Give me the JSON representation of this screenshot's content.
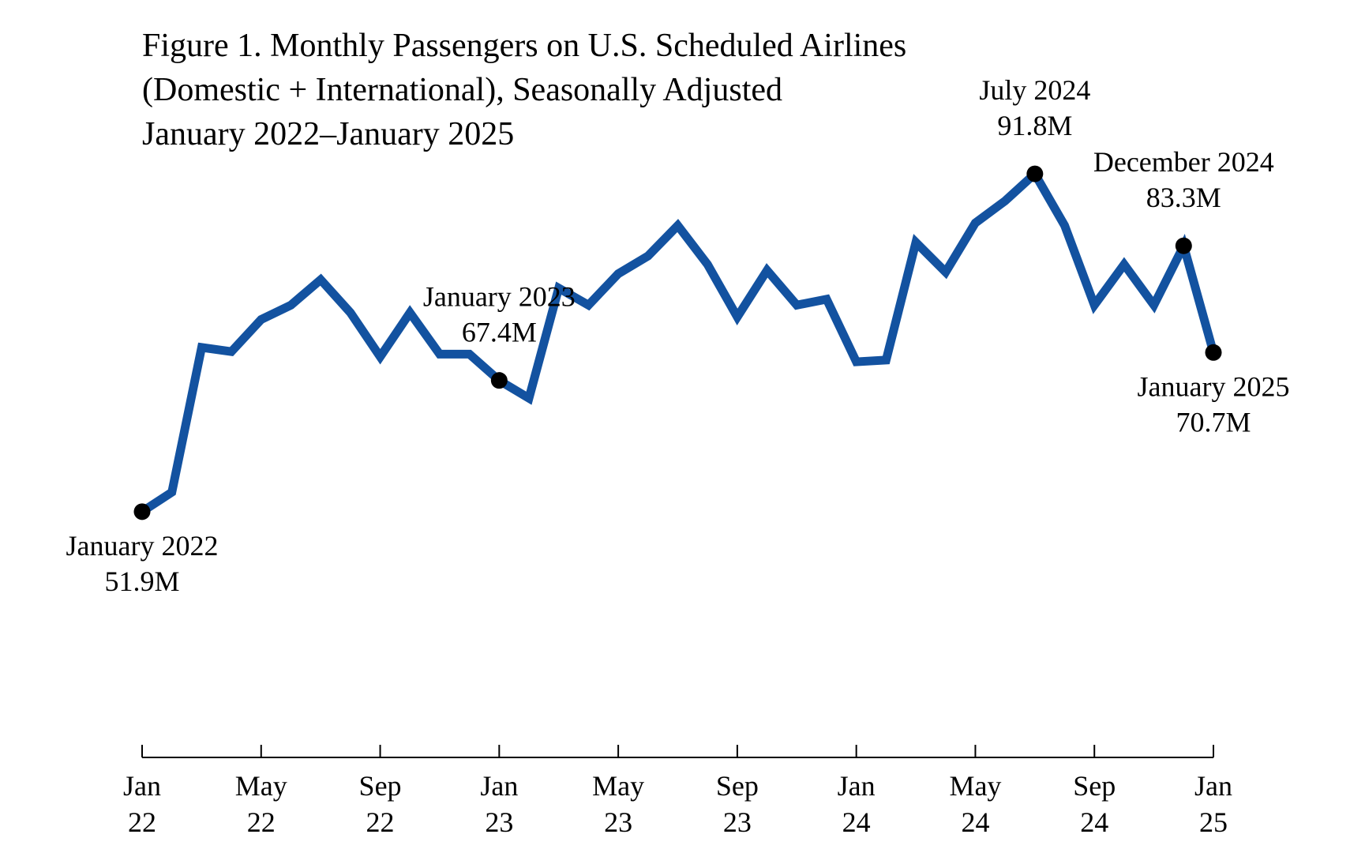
{
  "title": {
    "line1": "Figure 1. Monthly Passengers on U.S. Scheduled Airlines",
    "line2": "(Domestic + International), Seasonally Adjusted",
    "line3": "January 2022–January 2025"
  },
  "colors": {
    "series": "#1352A0",
    "markers": "#000000",
    "axis": "#000000"
  },
  "chart_data": {
    "type": "line",
    "title": "Figure 1. Monthly Passengers on U.S. Scheduled Airlines (Domestic + International), Seasonally Adjusted, January 2022–January 2025",
    "xlabel": "",
    "ylabel": "",
    "ylim": [
      40,
      100
    ],
    "grid": false,
    "unit": "million passengers",
    "series": [
      {
        "name": "Monthly passengers (millions)",
        "x": [
          "Jan 22",
          "Feb 22",
          "Mar 22",
          "Apr 22",
          "May 22",
          "Jun 22",
          "Jul 22",
          "Aug 22",
          "Sep 22",
          "Oct 22",
          "Nov 22",
          "Dec 22",
          "Jan 23",
          "Feb 23",
          "Mar 23",
          "Apr 23",
          "May 23",
          "Jun 23",
          "Jul 23",
          "Aug 23",
          "Sep 23",
          "Oct 23",
          "Nov 23",
          "Dec 23",
          "Jan 24",
          "Feb 24",
          "Mar 24",
          "Apr 24",
          "May 24",
          "Jun 24",
          "Jul 24",
          "Aug 24",
          "Sep 24",
          "Oct 24",
          "Nov 24",
          "Dec 24",
          "Jan 25"
        ],
        "values": [
          51.9,
          54.2,
          71.3,
          70.8,
          74.6,
          76.3,
          79.3,
          75.4,
          70.2,
          75.4,
          70.5,
          70.5,
          67.4,
          65.3,
          78.3,
          76.3,
          80.0,
          82.1,
          85.7,
          81.1,
          74.9,
          80.4,
          76.3,
          77.0,
          69.6,
          69.8,
          83.7,
          80.2,
          86.0,
          88.6,
          91.8,
          85.7,
          76.3,
          81.1,
          76.3,
          83.3,
          70.7
        ]
      }
    ],
    "x_ticks": [
      {
        "index": 0,
        "month": "Jan",
        "year": "22"
      },
      {
        "index": 4,
        "month": "May",
        "year": "22"
      },
      {
        "index": 8,
        "month": "Sep",
        "year": "22"
      },
      {
        "index": 12,
        "month": "Jan",
        "year": "23"
      },
      {
        "index": 16,
        "month": "May",
        "year": "23"
      },
      {
        "index": 20,
        "month": "Sep",
        "year": "23"
      },
      {
        "index": 24,
        "month": "Jan",
        "year": "24"
      },
      {
        "index": 28,
        "month": "May",
        "year": "24"
      },
      {
        "index": 32,
        "month": "Sep",
        "year": "24"
      },
      {
        "index": 36,
        "month": "Jan",
        "year": "25"
      }
    ],
    "annotations": [
      {
        "index": 0,
        "label": "January 2022",
        "value_text": "51.9M",
        "placement": "below"
      },
      {
        "index": 12,
        "label": "January 2023",
        "value_text": "67.4M",
        "placement": "above"
      },
      {
        "index": 30,
        "label": "July 2024",
        "value_text": "91.8M",
        "placement": "above"
      },
      {
        "index": 35,
        "label": "December 2024",
        "value_text": "83.3M",
        "placement": "above"
      },
      {
        "index": 36,
        "label": "January 2025",
        "value_text": "70.7M",
        "placement": "below"
      }
    ]
  }
}
